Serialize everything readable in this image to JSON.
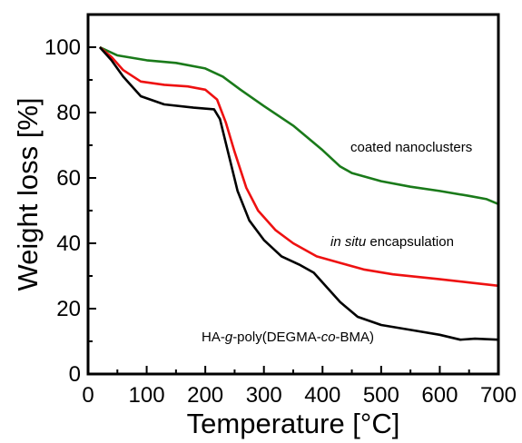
{
  "chart_data": {
    "type": "line",
    "xlabel": "Temperature [°C]",
    "ylabel": "Weight loss [%]",
    "xlim": [
      0,
      700
    ],
    "ylim": [
      0,
      110
    ],
    "xticks": [
      0,
      100,
      200,
      300,
      400,
      500,
      600,
      700
    ],
    "yticks": [
      0,
      20,
      40,
      60,
      80,
      100
    ],
    "grid": false,
    "legend": "none",
    "series": [
      {
        "color": "#1a7a1a",
        "annotation": "coated nanoclusters",
        "points": [
          [
            20,
            100
          ],
          [
            50,
            97.5
          ],
          [
            100,
            96
          ],
          [
            150,
            95.2
          ],
          [
            200,
            93.5
          ],
          [
            230,
            91
          ],
          [
            260,
            87
          ],
          [
            300,
            82
          ],
          [
            350,
            76
          ],
          [
            400,
            68.5
          ],
          [
            430,
            63.5
          ],
          [
            450,
            61.5
          ],
          [
            500,
            59
          ],
          [
            550,
            57.3
          ],
          [
            600,
            56
          ],
          [
            650,
            54.5
          ],
          [
            680,
            53.5
          ],
          [
            700,
            52
          ]
        ]
      },
      {
        "color": "#ee1111",
        "annotation_parts": [
          "in situ",
          " encapsulation"
        ],
        "points": [
          [
            20,
            100
          ],
          [
            40,
            97
          ],
          [
            60,
            93
          ],
          [
            90,
            89.5
          ],
          [
            130,
            88.5
          ],
          [
            170,
            88
          ],
          [
            200,
            87
          ],
          [
            220,
            84
          ],
          [
            235,
            77
          ],
          [
            250,
            68
          ],
          [
            270,
            57
          ],
          [
            290,
            50
          ],
          [
            320,
            44
          ],
          [
            350,
            40
          ],
          [
            390,
            36
          ],
          [
            430,
            34
          ],
          [
            470,
            32
          ],
          [
            520,
            30.5
          ],
          [
            600,
            29
          ],
          [
            650,
            28
          ],
          [
            700,
            27
          ]
        ]
      },
      {
        "color": "#000000",
        "annotation_parts": [
          "HA-",
          "g",
          "-poly(DEGMA-",
          "co",
          "-BMA)"
        ],
        "points": [
          [
            20,
            100
          ],
          [
            40,
            96
          ],
          [
            60,
            91
          ],
          [
            90,
            85
          ],
          [
            130,
            82.5
          ],
          [
            180,
            81.5
          ],
          [
            215,
            81
          ],
          [
            225,
            78
          ],
          [
            240,
            67
          ],
          [
            255,
            56
          ],
          [
            275,
            47
          ],
          [
            300,
            41
          ],
          [
            330,
            36
          ],
          [
            360,
            33.5
          ],
          [
            385,
            31
          ],
          [
            405,
            27
          ],
          [
            430,
            22
          ],
          [
            460,
            17.5
          ],
          [
            500,
            15
          ],
          [
            550,
            13.5
          ],
          [
            600,
            12
          ],
          [
            635,
            10.5
          ],
          [
            660,
            10.8
          ],
          [
            700,
            10.5
          ]
        ]
      }
    ]
  }
}
